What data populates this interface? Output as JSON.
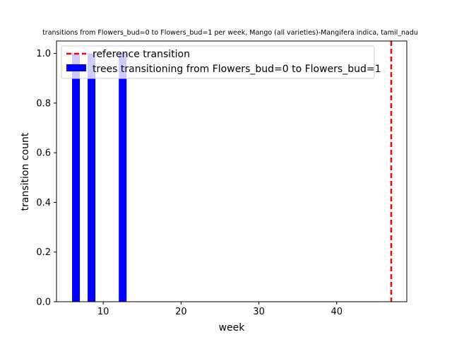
{
  "chart_data": {
    "type": "bar",
    "title": "transitions from Flowers_bud=0 to Flowers_bud=1 per week, Mango (all varieties)-Mangifera indica, tamil_nadu",
    "xlabel": "week",
    "ylabel": "transition count",
    "xlim": [
      4,
      49
    ],
    "ylim": [
      0,
      1.05
    ],
    "xticks": [
      10,
      20,
      30,
      40
    ],
    "yticks": [
      0.0,
      0.2,
      0.4,
      0.6,
      0.8,
      1.0
    ],
    "xtick_labels": [
      "10",
      "20",
      "30",
      "40"
    ],
    "ytick_labels": [
      "0.0",
      "0.2",
      "0.4",
      "0.6",
      "0.8",
      "1.0"
    ],
    "bar_width": 1,
    "bars": {
      "name": "trees transitioning from Flowers_bud=0 to Flowers_bud=1",
      "color": "#0000ff",
      "x": [
        6.5,
        8.5,
        12.5
      ],
      "values": [
        1,
        1,
        1
      ]
    },
    "reference_line": {
      "name": "reference transition",
      "x": 47,
      "color": "#ff0000",
      "style": "dashed"
    },
    "legend_position": "upper-left",
    "grid": false
  }
}
